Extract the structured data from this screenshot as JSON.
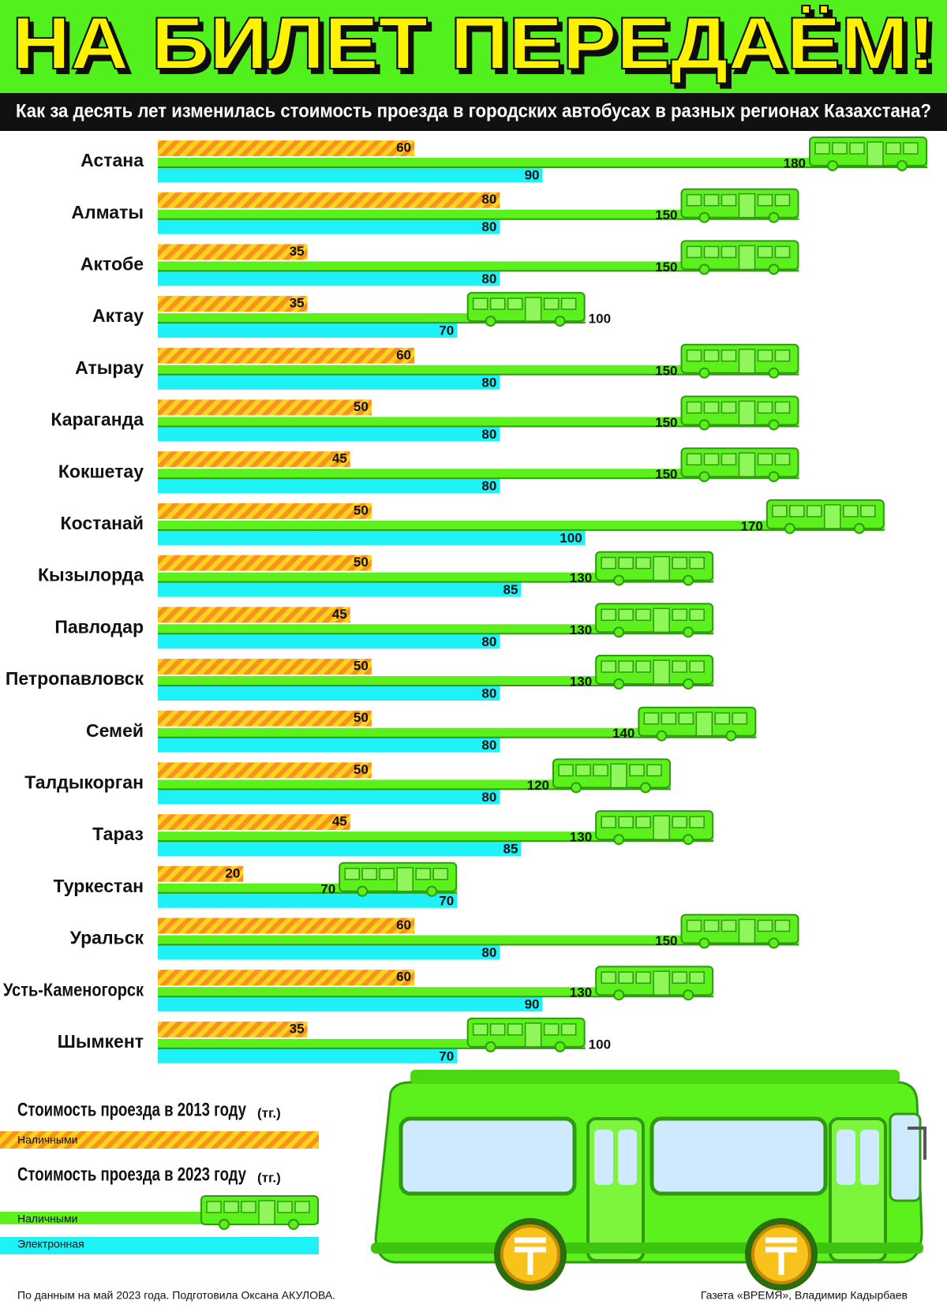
{
  "chart_data": {
    "type": "bar",
    "orientation": "horizontal",
    "title": "НА БИЛЕТ ПЕРЕДАЁМ!",
    "subtitle": "Как за десять лет изменилась стоимость проезда в городских автобусах в разных регионах Казахстана?",
    "categories": [
      "Астана",
      "Алматы",
      "Актобе",
      "Актау",
      "Атырау",
      "Караганда",
      "Кокшетау",
      "Костанай",
      "Кызылорда",
      "Павлодар",
      "Петропавловск",
      "Семей",
      "Талдыкорган",
      "Тараз",
      "Туркестан",
      "Уральск",
      "Усть-Каменогорск",
      "Шымкент"
    ],
    "series": [
      {
        "name": "Наличными",
        "color": "#f7941d",
        "values": [
          60,
          80,
          35,
          35,
          60,
          50,
          45,
          50,
          50,
          45,
          50,
          50,
          50,
          45,
          20,
          60,
          60,
          35
        ]
      },
      {
        "name": "Наличными",
        "color": "#5cf01c",
        "values": [
          180,
          150,
          150,
          100,
          150,
          150,
          150,
          170,
          130,
          130,
          130,
          140,
          120,
          130,
          70,
          150,
          130,
          100
        ]
      },
      {
        "name": "Электронная",
        "color": "#1ef2f7",
        "values": [
          90,
          80,
          80,
          70,
          80,
          80,
          80,
          100,
          85,
          80,
          80,
          80,
          80,
          85,
          70,
          80,
          90,
          70
        ]
      }
    ],
    "legend": [
      {
        "title": "Стоимость проезда в 2013 году",
        "unit": "(тг.)"
      },
      {
        "title": "Стоимость проезда в 2023 году",
        "unit": "(тг.)"
      }
    ],
    "source": "По данным на май 2023 года. Подготовила Оксана АКУЛОВА.",
    "credit": "Газета «ВРЕМЯ», Владимир Кадырбаев"
  }
}
